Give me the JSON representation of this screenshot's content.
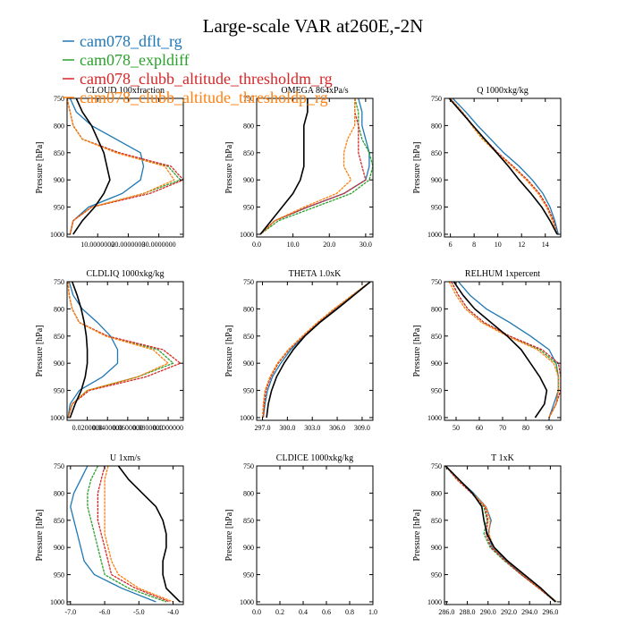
{
  "figure": {
    "title": "Large-scale VAR at260E,-2N",
    "legend": [
      {
        "name": "cam078_dflt_rg",
        "color": "#1f77b4"
      },
      {
        "name": "cam078_expldiff",
        "color": "#2ca02c"
      },
      {
        "name": "cam078_clubb_altitude_thresholdm_rg",
        "color": "#d62728"
      },
      {
        "name": "cam078_clubb_altitude_thresholdp_rg",
        "color": "#ff7f0e"
      }
    ],
    "obs_color": "#000000"
  },
  "chart_data": [
    {
      "type": "line",
      "title": "CLOUD 100xfraction",
      "ylabel": "Pressure [hPa]",
      "ylim": [
        1005,
        750
      ],
      "yticks": [
        1000,
        950,
        900,
        850,
        800,
        750
      ],
      "xlim": [
        0,
        38
      ],
      "xticks": [
        10,
        20,
        30
      ],
      "xticklabels": [
        "10.0000000",
        "20.0000000",
        "30.0000000"
      ],
      "y": [
        750,
        775,
        800,
        825,
        850,
        875,
        900,
        925,
        950,
        975,
        1000
      ],
      "series": [
        {
          "name": "cam078_dflt_rg",
          "values": [
            1,
            3,
            8,
            16,
            24,
            25,
            24,
            18,
            7,
            2,
            1
          ]
        },
        {
          "name": "cam078_expldiff",
          "values": [
            0,
            1,
            2,
            5,
            17,
            33,
            37,
            25,
            8,
            2,
            1
          ]
        },
        {
          "name": "cam078_clubb_altitude_thresholdm_rg",
          "values": [
            0,
            1,
            2,
            5,
            17,
            34,
            38,
            27,
            8,
            2,
            1
          ]
        },
        {
          "name": "cam078_clubb_altitude_thresholdp_rg",
          "values": [
            0,
            1,
            2,
            5,
            16,
            32,
            35,
            25,
            8,
            2,
            1
          ]
        },
        {
          "name": "obs",
          "values": [
            3,
            5,
            8,
            10,
            12,
            13,
            14,
            12,
            9,
            5,
            2
          ]
        }
      ]
    },
    {
      "type": "line",
      "title": "OMEGA 864xPa/s",
      "ylabel": "Pressure [hPa]",
      "ylim": [
        1005,
        750
      ],
      "yticks": [
        1000,
        950,
        900,
        850,
        800,
        750
      ],
      "xlim": [
        0,
        32
      ],
      "xticks": [
        0,
        10,
        20,
        30
      ],
      "xticklabels": [
        "0.0",
        "10.0",
        "20.0",
        "30.0"
      ],
      "y": [
        750,
        775,
        800,
        825,
        850,
        875,
        900,
        925,
        950,
        975,
        1000
      ],
      "series": [
        {
          "name": "cam078_dflt_rg",
          "values": [
            28,
            29,
            29,
            30,
            31,
            31,
            30,
            24,
            14,
            5,
            1
          ]
        },
        {
          "name": "cam078_expldiff",
          "values": [
            27,
            28,
            28,
            29,
            31,
            32,
            31,
            26,
            16,
            6,
            1
          ]
        },
        {
          "name": "cam078_clubb_altitude_thresholdm_rg",
          "values": [
            27,
            27,
            28,
            28,
            28,
            29,
            30,
            24,
            14,
            5,
            1
          ]
        },
        {
          "name": "cam078_clubb_altitude_thresholdp_rg",
          "values": [
            27,
            27,
            27,
            25,
            24,
            24,
            26,
            22,
            13,
            5,
            1
          ]
        },
        {
          "name": "obs",
          "values": [
            14,
            14,
            13,
            13,
            13,
            13,
            12,
            10,
            7,
            4,
            1
          ]
        }
      ]
    },
    {
      "type": "line",
      "title": "Q 1000xkg/kg",
      "ylabel": "Pressure [hPa]",
      "ylim": [
        1005,
        750
      ],
      "yticks": [
        1000,
        950,
        900,
        850,
        800,
        750
      ],
      "xlim": [
        5.5,
        15.3
      ],
      "xticks": [
        6,
        8,
        10,
        12,
        14
      ],
      "xticklabels": [
        "6",
        "8",
        "10",
        "12",
        "14"
      ],
      "y": [
        750,
        775,
        800,
        825,
        850,
        875,
        900,
        925,
        950,
        975,
        1000
      ],
      "series": [
        {
          "name": "cam078_dflt_rg",
          "values": [
            6.2,
            7.3,
            8.3,
            9.4,
            10.5,
            11.8,
            12.9,
            13.8,
            14.4,
            14.8,
            15.1
          ]
        },
        {
          "name": "cam078_expldiff",
          "values": [
            6.0,
            7.0,
            7.9,
            8.8,
            9.9,
            11.3,
            12.5,
            13.5,
            14.2,
            14.7,
            15.0
          ]
        },
        {
          "name": "cam078_clubb_altitude_thresholdm_rg",
          "values": [
            6.0,
            7.0,
            7.9,
            8.9,
            10.0,
            11.3,
            12.5,
            13.5,
            14.2,
            14.7,
            15.0
          ]
        },
        {
          "name": "cam078_clubb_altitude_thresholdp_rg",
          "values": [
            6.0,
            7.0,
            7.8,
            8.7,
            9.9,
            11.2,
            12.4,
            13.4,
            14.1,
            14.6,
            15.0
          ]
        },
        {
          "name": "obs",
          "values": [
            5.9,
            6.9,
            7.9,
            8.9,
            9.9,
            10.9,
            11.8,
            12.8,
            13.7,
            14.4,
            15.0
          ]
        }
      ]
    },
    {
      "type": "line",
      "title": "CLDLIQ 1000xkg/kg",
      "ylabel": "Pressure [hPa]",
      "ylim": [
        1005,
        750
      ],
      "yticks": [
        1000,
        950,
        900,
        850,
        800,
        750
      ],
      "xlim": [
        0,
        0.115
      ],
      "xticks": [
        0.02,
        0.04,
        0.06,
        0.08,
        0.1
      ],
      "xticklabels": [
        "0.0200000",
        "0.0400000",
        "0.0600000",
        "0.0800000",
        "0.1000000"
      ],
      "y": [
        750,
        775,
        800,
        825,
        850,
        875,
        900,
        925,
        950,
        975,
        1000
      ],
      "series": [
        {
          "name": "cam078_dflt_rg",
          "values": [
            0.002,
            0.006,
            0.015,
            0.03,
            0.043,
            0.05,
            0.05,
            0.035,
            0.012,
            0.003,
            0.001
          ]
        },
        {
          "name": "cam078_expldiff",
          "values": [
            0.001,
            0.002,
            0.005,
            0.012,
            0.04,
            0.09,
            0.105,
            0.07,
            0.02,
            0.005,
            0.001
          ]
        },
        {
          "name": "cam078_clubb_altitude_thresholdm_rg",
          "values": [
            0.001,
            0.002,
            0.005,
            0.012,
            0.04,
            0.095,
            0.112,
            0.078,
            0.022,
            0.005,
            0.001
          ]
        },
        {
          "name": "cam078_clubb_altitude_thresholdp_rg",
          "values": [
            0.001,
            0.002,
            0.005,
            0.012,
            0.038,
            0.085,
            0.1,
            0.07,
            0.02,
            0.005,
            0.001
          ]
        },
        {
          "name": "obs",
          "values": [
            0.005,
            0.01,
            0.014,
            0.017,
            0.019,
            0.02,
            0.02,
            0.018,
            0.014,
            0.008,
            0.003
          ]
        }
      ]
    },
    {
      "type": "line",
      "title": "THETA 1.0xK",
      "ylabel": "Pressure [hPa]",
      "ylim": [
        1005,
        750
      ],
      "yticks": [
        1000,
        950,
        900,
        850,
        800,
        750
      ],
      "xlim": [
        296.3,
        310.3
      ],
      "xticks": [
        297,
        300,
        303,
        306,
        309
      ],
      "xticklabels": [
        "297.0",
        "300.0",
        "303.0",
        "306.0",
        "309.0"
      ],
      "y": [
        750,
        775,
        800,
        825,
        850,
        875,
        900,
        925,
        950,
        975,
        1000
      ],
      "series": [
        {
          "name": "cam078_dflt_rg",
          "values": [
            310.0,
            307.9,
            305.8,
            303.8,
            302.0,
            300.4,
            299.2,
            298.2,
            297.6,
            297.3,
            297.1
          ]
        },
        {
          "name": "cam078_expldiff",
          "values": [
            310.0,
            307.8,
            305.7,
            303.7,
            301.9,
            300.2,
            298.9,
            298.0,
            297.4,
            297.2,
            297.1
          ]
        },
        {
          "name": "cam078_clubb_altitude_thresholdm_rg",
          "values": [
            310.0,
            307.8,
            305.7,
            303.7,
            301.9,
            300.2,
            298.9,
            298.0,
            297.4,
            297.2,
            297.1
          ]
        },
        {
          "name": "cam078_clubb_altitude_thresholdp_rg",
          "values": [
            310.0,
            307.8,
            305.6,
            303.6,
            301.8,
            300.1,
            298.8,
            297.9,
            297.3,
            297.1,
            297.0
          ]
        },
        {
          "name": "obs",
          "values": [
            310.0,
            308.0,
            306.0,
            303.9,
            302.1,
            300.7,
            299.6,
            298.7,
            298.1,
            297.7,
            297.5
          ]
        }
      ]
    },
    {
      "type": "line",
      "title": "RELHUM 1xpercent",
      "ylabel": "Pressure [hPa]",
      "ylim": [
        1005,
        750
      ],
      "yticks": [
        1000,
        950,
        900,
        850,
        800,
        750
      ],
      "xlim": [
        45,
        95
      ],
      "xticks": [
        50,
        60,
        70,
        80,
        90
      ],
      "xticklabels": [
        "50",
        "60",
        "70",
        "80",
        "90"
      ],
      "y": [
        750,
        775,
        800,
        825,
        850,
        875,
        900,
        925,
        950,
        975,
        1000
      ],
      "series": [
        {
          "name": "cam078_dflt_rg",
          "values": [
            51,
            56,
            63,
            73,
            82,
            90,
            93,
            94,
            94,
            92,
            90
          ]
        },
        {
          "name": "cam078_expldiff",
          "values": [
            48,
            51,
            55,
            62,
            73,
            86,
            93,
            94,
            94,
            93,
            90
          ]
        },
        {
          "name": "cam078_clubb_altitude_thresholdm_rg",
          "values": [
            48,
            51,
            55,
            62,
            73,
            87,
            94,
            95,
            95,
            93,
            90
          ]
        },
        {
          "name": "cam078_clubb_altitude_thresholdp_rg",
          "values": [
            47,
            50,
            54,
            61,
            72,
            85,
            92,
            94,
            94,
            93,
            90
          ]
        },
        {
          "name": "obs",
          "values": [
            49,
            53,
            58,
            65,
            72,
            78,
            82,
            86,
            89,
            88,
            84
          ]
        }
      ]
    },
    {
      "type": "line",
      "title": "U 1xm/s",
      "ylabel": "Pressure [hPa]",
      "ylim": [
        1005,
        750
      ],
      "yticks": [
        1000,
        950,
        900,
        850,
        800,
        750
      ],
      "xlim": [
        -7.1,
        -3.7
      ],
      "xticks": [
        -7,
        -6,
        -5,
        -4
      ],
      "xticklabels": [
        "-7.0",
        "-6.0",
        "-5.0",
        "-4.0"
      ],
      "y": [
        750,
        775,
        800,
        825,
        850,
        875,
        900,
        925,
        950,
        975,
        1000
      ],
      "series": [
        {
          "name": "cam078_dflt_rg",
          "values": [
            -6.5,
            -6.7,
            -6.9,
            -7.0,
            -6.9,
            -6.8,
            -6.7,
            -6.6,
            -6.3,
            -5.5,
            -4.5
          ]
        },
        {
          "name": "cam078_expldiff",
          "values": [
            -6.2,
            -6.4,
            -6.5,
            -6.5,
            -6.4,
            -6.3,
            -6.2,
            -6.1,
            -6.0,
            -5.3,
            -4.2
          ]
        },
        {
          "name": "cam078_clubb_altitude_thresholdm_rg",
          "values": [
            -6.0,
            -6.1,
            -6.2,
            -6.2,
            -6.2,
            -6.1,
            -6.0,
            -5.9,
            -5.8,
            -5.1,
            -4.1
          ]
        },
        {
          "name": "cam078_clubb_altitude_thresholdp_rg",
          "values": [
            -5.9,
            -6.0,
            -6.0,
            -6.0,
            -6.0,
            -6.0,
            -5.9,
            -5.8,
            -5.6,
            -5.0,
            -4.0
          ]
        },
        {
          "name": "obs",
          "values": [
            -5.6,
            -5.3,
            -4.9,
            -4.5,
            -4.3,
            -4.2,
            -4.2,
            -4.3,
            -4.3,
            -4.2,
            -3.8
          ]
        }
      ]
    },
    {
      "type": "line",
      "title": "CLDICE 1000xkg/kg",
      "ylabel": "Pressure [hPa]",
      "ylim": [
        1005,
        750
      ],
      "yticks": [
        1000,
        950,
        900,
        850,
        800,
        750
      ],
      "xlim": [
        0,
        1
      ],
      "xticks": [
        0,
        0.2,
        0.4,
        0.6,
        0.8,
        1.0
      ],
      "xticklabels": [
        "0.0",
        "0.2",
        "0.4",
        "0.6",
        "0.8",
        "1.0"
      ],
      "y": [],
      "series": []
    },
    {
      "type": "line",
      "title": "T 1xK",
      "ylabel": "Pressure [hPa]",
      "ylim": [
        1005,
        750
      ],
      "yticks": [
        1000,
        950,
        900,
        850,
        800,
        750
      ],
      "xlim": [
        285.8,
        297.0
      ],
      "xticks": [
        286,
        288,
        290,
        292,
        294,
        296
      ],
      "xticklabels": [
        "286.0",
        "288.0",
        "290.0",
        "292.0",
        "294.0",
        "296.0"
      ],
      "y": [
        750,
        775,
        800,
        825,
        850,
        875,
        900,
        925,
        950,
        975,
        1000
      ],
      "series": [
        {
          "name": "cam078_dflt_rg",
          "values": [
            285.9,
            287.2,
            288.6,
            289.8,
            290.3,
            290.0,
            290.4,
            291.8,
            293.3,
            295.0,
            296.6
          ]
        },
        {
          "name": "cam078_expldiff",
          "values": [
            285.9,
            287.0,
            288.4,
            289.6,
            289.9,
            289.6,
            290.2,
            291.6,
            293.2,
            294.9,
            296.5
          ]
        },
        {
          "name": "cam078_clubb_altitude_thresholdm_rg",
          "values": [
            285.9,
            287.0,
            288.4,
            289.7,
            290.0,
            289.8,
            290.3,
            291.7,
            293.2,
            294.9,
            296.5
          ]
        },
        {
          "name": "cam078_clubb_altitude_thresholdp_rg",
          "values": [
            285.9,
            287.1,
            288.5,
            289.8,
            290.2,
            290.1,
            290.5,
            291.9,
            293.4,
            295.0,
            296.6
          ]
        },
        {
          "name": "obs",
          "values": [
            285.9,
            287.2,
            288.5,
            289.4,
            289.6,
            289.9,
            290.6,
            291.9,
            293.5,
            295.1,
            296.5
          ]
        }
      ]
    }
  ]
}
